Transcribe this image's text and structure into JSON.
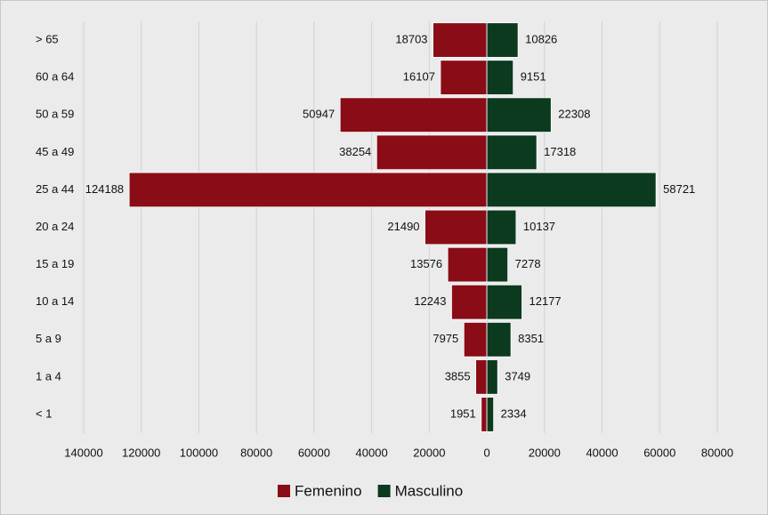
{
  "chart_data": {
    "type": "pyramid",
    "categories": [
      "> 65",
      "60 a 64",
      "50 a 59",
      "45 a 49",
      "25 a 44",
      "20 a 24",
      "15 a 19",
      "10 a 14",
      "5 a 9",
      "1 a 4",
      "< 1"
    ],
    "series": [
      {
        "name": "Femenino",
        "color": "#8a0c16",
        "values": [
          -18703,
          -16107,
          -50947,
          -38254,
          -124188,
          -21490,
          -13576,
          -12243,
          -7975,
          -3855,
          -1951
        ],
        "value_labels": [
          "18703",
          "16107",
          "50947",
          "38254",
          "124188",
          "21490",
          "13576",
          "12243",
          "7975",
          "3855",
          "1951"
        ]
      },
      {
        "name": "Masculino",
        "color": "#0c3a1f",
        "values": [
          10826,
          9151,
          22308,
          17318,
          58721,
          10137,
          7278,
          12177,
          8351,
          3749,
          2334
        ]
      }
    ],
    "xlim": [
      -140000,
      80000
    ],
    "xticks": [
      {
        "value": -140000,
        "label": "140000"
      },
      {
        "value": -120000,
        "label": "120000"
      },
      {
        "value": -100000,
        "label": "100000"
      },
      {
        "value": -80000,
        "label": "80000"
      },
      {
        "value": -60000,
        "label": "60000"
      },
      {
        "value": -40000,
        "label": "40000"
      },
      {
        "value": -20000,
        "label": "20000"
      },
      0,
      20000,
      40000,
      60000,
      80000
    ],
    "grid": true,
    "legend": "bottom"
  }
}
